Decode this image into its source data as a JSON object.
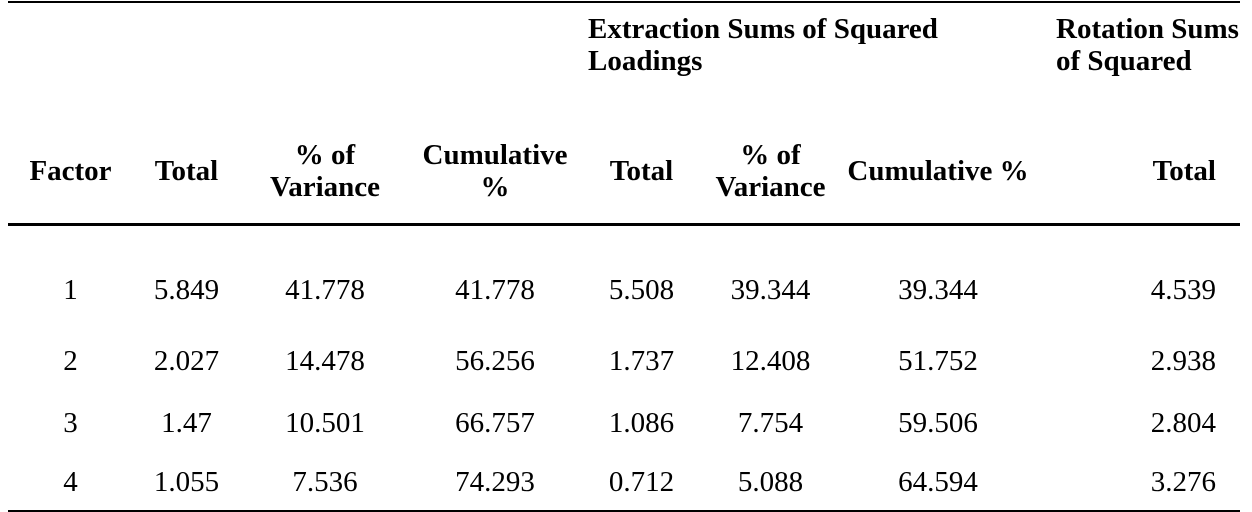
{
  "table": {
    "group_headers": {
      "extraction": "Extraction Sums of Squared Loadings",
      "rotation": "Rotation Sums of Squared"
    },
    "columns": [
      "Factor",
      "Total",
      "% of Variance",
      "Cumulative %",
      "Total",
      "% of Variance",
      "Cumulative %",
      "Total"
    ],
    "rows": [
      [
        "1",
        "5.849",
        "41.778",
        "41.778",
        "5.508",
        "39.344",
        "39.344",
        "4.539"
      ],
      [
        "2",
        "2.027",
        "14.478",
        "56.256",
        "1.737",
        "12.408",
        "51.752",
        "2.938"
      ],
      [
        "3",
        "1.47",
        "10.501",
        "66.757",
        "1.086",
        "7.754",
        "59.506",
        "2.804"
      ],
      [
        "4",
        "1.055",
        "7.536",
        "74.293",
        "0.712",
        "5.088",
        "64.594",
        "3.276"
      ]
    ]
  }
}
